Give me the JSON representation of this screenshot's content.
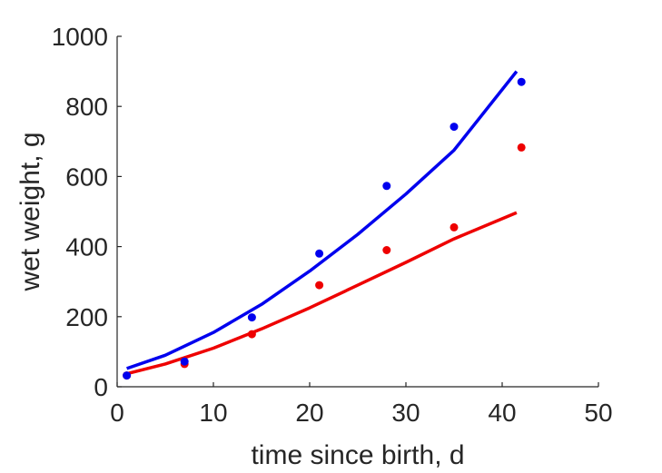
{
  "chart_data": {
    "type": "scatter",
    "title": "",
    "xlabel": "time since birth, d",
    "ylabel": "wet weight, g",
    "xlim": [
      0,
      50
    ],
    "ylim": [
      0,
      1000
    ],
    "xticks": [
      "0",
      "10",
      "20",
      "30",
      "40",
      "50"
    ],
    "yticks": [
      "0",
      "200",
      "400",
      "600",
      "800",
      "1000"
    ],
    "grid": false,
    "legend": "none",
    "series": [
      {
        "color": "#0000ee",
        "points": [
          {
            "x": 1,
            "y": 32
          },
          {
            "x": 7,
            "y": 72
          },
          {
            "x": 14,
            "y": 198
          },
          {
            "x": 21,
            "y": 380
          },
          {
            "x": 28,
            "y": 573
          },
          {
            "x": 35,
            "y": 742
          },
          {
            "x": 42,
            "y": 870
          }
        ],
        "fit": [
          {
            "x": 1,
            "y": 52
          },
          {
            "x": 5,
            "y": 90
          },
          {
            "x": 10,
            "y": 155
          },
          {
            "x": 15,
            "y": 235
          },
          {
            "x": 20,
            "y": 330
          },
          {
            "x": 25,
            "y": 435
          },
          {
            "x": 30,
            "y": 550
          },
          {
            "x": 35,
            "y": 675
          },
          {
            "x": 41.5,
            "y": 900
          }
        ]
      },
      {
        "color": "#ee0000",
        "points": [
          {
            "x": 1,
            "y": 32
          },
          {
            "x": 7,
            "y": 65
          },
          {
            "x": 14,
            "y": 150
          },
          {
            "x": 21,
            "y": 290
          },
          {
            "x": 28,
            "y": 390
          },
          {
            "x": 35,
            "y": 455
          },
          {
            "x": 42,
            "y": 683
          }
        ],
        "fit": [
          {
            "x": 1,
            "y": 37
          },
          {
            "x": 5,
            "y": 65
          },
          {
            "x": 10,
            "y": 110
          },
          {
            "x": 15,
            "y": 165
          },
          {
            "x": 20,
            "y": 225
          },
          {
            "x": 25,
            "y": 290
          },
          {
            "x": 30,
            "y": 355
          },
          {
            "x": 35,
            "y": 422
          },
          {
            "x": 41.5,
            "y": 497
          }
        ]
      }
    ]
  }
}
